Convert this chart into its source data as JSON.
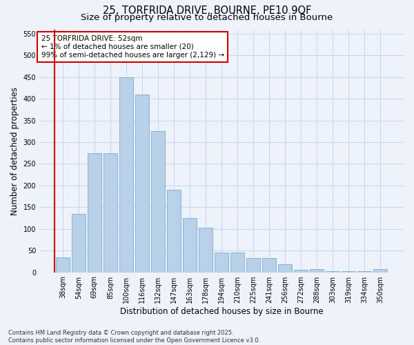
{
  "title_line1": "25, TORFRIDA DRIVE, BOURNE, PE10 9QF",
  "title_line2": "Size of property relative to detached houses in Bourne",
  "xlabel": "Distribution of detached houses by size in Bourne",
  "ylabel": "Number of detached properties",
  "categories": [
    "38sqm",
    "54sqm",
    "69sqm",
    "85sqm",
    "100sqm",
    "116sqm",
    "132sqm",
    "147sqm",
    "163sqm",
    "178sqm",
    "194sqm",
    "210sqm",
    "225sqm",
    "241sqm",
    "256sqm",
    "272sqm",
    "288sqm",
    "303sqm",
    "319sqm",
    "334sqm",
    "350sqm"
  ],
  "values": [
    35,
    135,
    275,
    275,
    450,
    410,
    325,
    190,
    125,
    102,
    45,
    45,
    32,
    32,
    18,
    5,
    8,
    3,
    3,
    2,
    7
  ],
  "bar_color": "#b8d0e8",
  "bar_edge_color": "#7aadd0",
  "vline_color": "#cc0000",
  "annotation_text": "25 TORFRIDA DRIVE: 52sqm\n← 1% of detached houses are smaller (20)\n99% of semi-detached houses are larger (2,129) →",
  "annotation_box_color": "#cc0000",
  "ylim": [
    0,
    560
  ],
  "yticks": [
    0,
    50,
    100,
    150,
    200,
    250,
    300,
    350,
    400,
    450,
    500,
    550
  ],
  "background_color": "#eef2fa",
  "grid_color": "#c8d4ec",
  "footer_line1": "Contains HM Land Registry data © Crown copyright and database right 2025.",
  "footer_line2": "Contains public sector information licensed under the Open Government Licence v3.0.",
  "title_fontsize": 10.5,
  "subtitle_fontsize": 9.5,
  "axis_label_fontsize": 8.5,
  "tick_fontsize": 7,
  "annotation_fontsize": 7.5,
  "footer_fontsize": 6.0
}
